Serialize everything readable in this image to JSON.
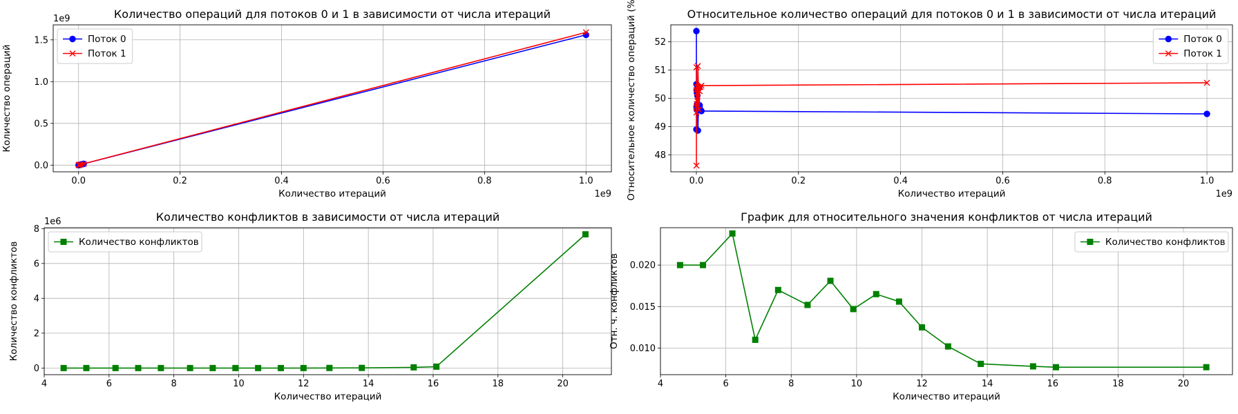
{
  "colors": {
    "blue": "#0000ff",
    "red": "#ff0000",
    "green": "#008000",
    "grid": "#b0b0b0"
  },
  "chart_data": [
    {
      "type": "line",
      "title": "Количество операций для потоков 0 и 1 в зависимости от числа итераций",
      "xlabel": "Количество итераций",
      "ylabel": "Количество операций",
      "x_multiplier": "1e9",
      "y_multiplier": "1e9",
      "xlim": [
        -0.05,
        1.05
      ],
      "ylim": [
        -0.08,
        1.68
      ],
      "xticks": [
        0.0,
        0.2,
        0.4,
        0.6,
        0.8,
        1.0
      ],
      "xtick_labels": [
        "0.0",
        "0.2",
        "0.4",
        "0.6",
        "0.8",
        "1.0"
      ],
      "yticks": [
        0.0,
        0.5,
        1.0,
        1.5
      ],
      "ytick_labels": [
        "0.0",
        "0.5",
        "1.0",
        "1.5"
      ],
      "grid": true,
      "legend": "upper-left",
      "x": [
        0.0001,
        0.0002,
        0.0005,
        0.001,
        0.002,
        0.005,
        0.01,
        1.0
      ],
      "series": [
        {
          "name": "Поток 0",
          "color": "#0000ff",
          "marker": "circle",
          "values": [
            0.0001,
            0.0002,
            0.0005,
            0.0016,
            0.0031,
            0.0078,
            0.0155,
            1.56
          ]
        },
        {
          "name": "Поток 1",
          "color": "#ff0000",
          "marker": "x",
          "values": [
            0.0001,
            0.0002,
            0.0005,
            0.0016,
            0.0032,
            0.008,
            0.016,
            1.59
          ]
        }
      ]
    },
    {
      "type": "line",
      "title": "Относительное количество операций для потоков 0 и 1 в зависимости от числа итераций",
      "xlabel": "Количество итераций",
      "ylabel": "Относительное количество операций (%)",
      "x_multiplier": "1e9",
      "y_multiplier": "",
      "xlim": [
        -0.05,
        1.05
      ],
      "ylim": [
        47.4,
        52.6
      ],
      "xticks": [
        0.0,
        0.2,
        0.4,
        0.6,
        0.8,
        1.0
      ],
      "xtick_labels": [
        "0.0",
        "0.2",
        "0.4",
        "0.6",
        "0.8",
        "1.0"
      ],
      "yticks": [
        48,
        49,
        50,
        51,
        52
      ],
      "ytick_labels": [
        "48",
        "49",
        "50",
        "51",
        "52"
      ],
      "grid": true,
      "legend": "upper-right",
      "x": [
        0.0001,
        0.00015,
        0.0002,
        0.0003,
        0.0005,
        0.0007,
        0.001,
        0.0015,
        0.002,
        0.003,
        0.004,
        0.005,
        0.0065,
        0.008,
        0.01,
        1.0
      ],
      "series": [
        {
          "name": "Поток 0",
          "color": "#0000ff",
          "marker": "circle",
          "values": [
            52.38,
            48.9,
            50.5,
            49.7,
            50.3,
            49.6,
            50.2,
            49.8,
            50.1,
            48.86,
            49.6,
            50.4,
            49.75,
            49.6,
            49.55,
            49.45
          ]
        },
        {
          "name": "Поток 1",
          "color": "#ff0000",
          "marker": "x",
          "values": [
            47.62,
            51.1,
            49.5,
            50.3,
            49.7,
            50.4,
            49.8,
            50.2,
            49.9,
            51.14,
            50.4,
            49.6,
            50.25,
            50.4,
            50.45,
            50.55
          ]
        }
      ]
    },
    {
      "type": "line",
      "title": "Количество конфликтов в зависимости от числа итераций",
      "xlabel": "Количество итераций",
      "ylabel": "Количество конфликтов",
      "x_multiplier": "",
      "y_multiplier": "1e6",
      "xlim": [
        4.0,
        21.5
      ],
      "ylim": [
        -0.38,
        8.05
      ],
      "xticks": [
        4,
        6,
        8,
        10,
        12,
        14,
        16,
        18,
        20
      ],
      "xtick_labels": [
        "4",
        "6",
        "8",
        "10",
        "12",
        "14",
        "16",
        "18",
        "20"
      ],
      "yticks": [
        0,
        2,
        4,
        6,
        8
      ],
      "ytick_labels": [
        "0",
        "2",
        "4",
        "6",
        "8"
      ],
      "grid": true,
      "legend": "upper-left",
      "x": [
        4.6,
        5.3,
        6.2,
        6.9,
        7.6,
        8.5,
        9.2,
        9.9,
        10.6,
        11.3,
        12.0,
        12.8,
        13.8,
        15.4,
        16.1,
        20.7
      ],
      "series": [
        {
          "name": "Количество конфликтов",
          "color": "#008000",
          "marker": "square",
          "values": [
            0.0,
            0.0,
            0.0,
            0.0,
            0.0,
            0.0,
            0.0,
            0.0,
            0.0,
            0.0,
            0.0,
            0.005,
            0.008,
            0.04,
            0.08,
            7.67
          ]
        }
      ]
    },
    {
      "type": "line",
      "title": "График для относительного значения конфликтов от числа итераций",
      "xlabel": "Количество итераций",
      "ylabel": "Отн. ч. конфликтов",
      "x_multiplier": "",
      "y_multiplier": "",
      "xlim": [
        4.0,
        21.5
      ],
      "ylim": [
        0.0068,
        0.0245
      ],
      "xticks": [
        4,
        6,
        8,
        10,
        12,
        14,
        16,
        18,
        20
      ],
      "xtick_labels": [
        "4",
        "6",
        "8",
        "10",
        "12",
        "14",
        "16",
        "18",
        "20"
      ],
      "yticks": [
        0.01,
        0.015,
        0.02
      ],
      "ytick_labels": [
        "0.010",
        "0.015",
        "0.020"
      ],
      "grid": true,
      "legend": "upper-right",
      "x": [
        4.6,
        5.3,
        6.2,
        6.9,
        7.6,
        8.5,
        9.2,
        9.9,
        10.6,
        11.3,
        12.0,
        12.8,
        13.8,
        15.4,
        16.1,
        20.7
      ],
      "series": [
        {
          "name": "Количество конфликтов",
          "color": "#008000",
          "marker": "square",
          "values": [
            0.02,
            0.02,
            0.0238,
            0.011,
            0.017,
            0.0152,
            0.0181,
            0.0147,
            0.0165,
            0.0156,
            0.0125,
            0.0102,
            0.0081,
            0.0078,
            0.0077,
            0.0077
          ]
        }
      ]
    }
  ]
}
